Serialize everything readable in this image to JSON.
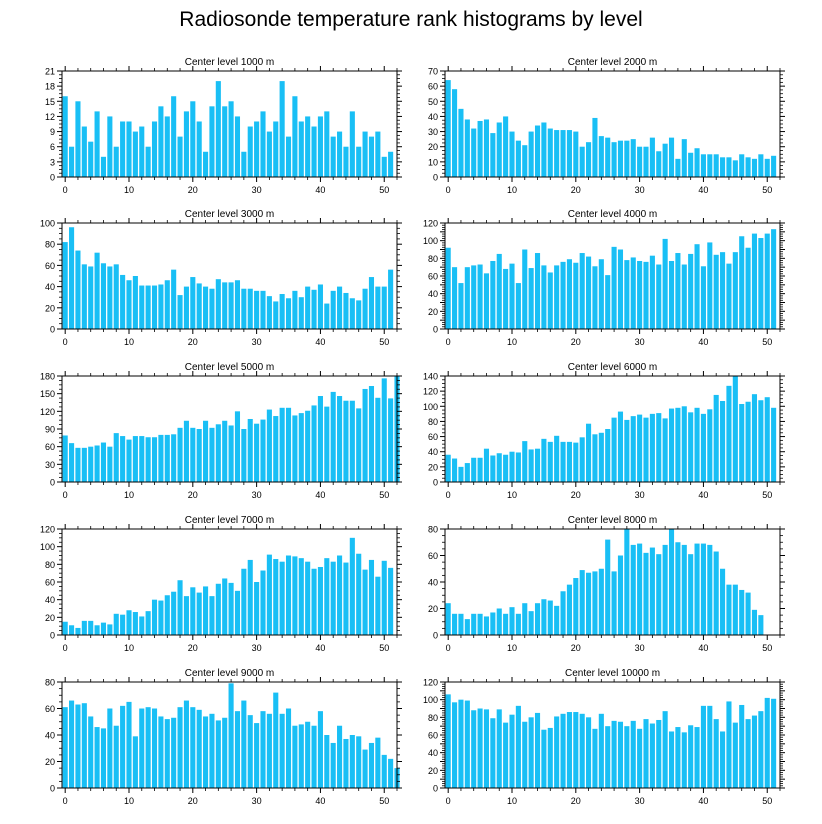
{
  "title": "Radiosonde temperature rank histograms by level",
  "colors": {
    "bar": "#19bff5",
    "axis": "#000000",
    "background": "#ffffff"
  },
  "chart_data": [
    {
      "type": "bar",
      "title": "Center level 1000 m",
      "xlim": [
        -0.5,
        52
      ],
      "ylim": [
        0,
        21
      ],
      "xticks": [
        0,
        10,
        20,
        30,
        40,
        50
      ],
      "yticks": [
        0,
        3,
        6,
        9,
        12,
        15,
        18,
        21
      ],
      "values": [
        16,
        6,
        15,
        10,
        7,
        13,
        4,
        12,
        6,
        11,
        11,
        9,
        10,
        6,
        11,
        14,
        12,
        16,
        8,
        13,
        15,
        11,
        5,
        14,
        19,
        14,
        15,
        12,
        5,
        10,
        11,
        13,
        9,
        11,
        19,
        8,
        16,
        11,
        12,
        10,
        12,
        13,
        8,
        9,
        6,
        13,
        6,
        9,
        8,
        9,
        4,
        5
      ]
    },
    {
      "type": "bar",
      "title": "Center level 2000 m",
      "xlim": [
        -0.5,
        52
      ],
      "ylim": [
        0,
        70
      ],
      "xticks": [
        0,
        10,
        20,
        30,
        40,
        50
      ],
      "yticks": [
        0,
        10,
        20,
        30,
        40,
        50,
        60,
        70
      ],
      "values": [
        64,
        58,
        45,
        38,
        32,
        37,
        38,
        29,
        36,
        40,
        30,
        24,
        21,
        30,
        34,
        36,
        32,
        31,
        31,
        31,
        30,
        20,
        23,
        39,
        27,
        26,
        23,
        24,
        24,
        25,
        20,
        20,
        26,
        17,
        22,
        26,
        12,
        25,
        16,
        19,
        15,
        15,
        15,
        13,
        13,
        11,
        15,
        13,
        12,
        15,
        12,
        14
      ]
    },
    {
      "type": "bar",
      "title": "Center level 3000 m",
      "xlim": [
        -0.5,
        52
      ],
      "ylim": [
        0,
        100
      ],
      "xticks": [
        0,
        10,
        20,
        30,
        40,
        50
      ],
      "yticks": [
        0,
        20,
        40,
        60,
        80,
        100
      ],
      "values": [
        82,
        96,
        74,
        61,
        59,
        72,
        62,
        59,
        61,
        51,
        46,
        50,
        41,
        41,
        41,
        42,
        46,
        56,
        32,
        40,
        49,
        43,
        40,
        38,
        47,
        44,
        44,
        46,
        38,
        38,
        36,
        36,
        31,
        26,
        33,
        29,
        36,
        30,
        40,
        37,
        42,
        24,
        36,
        40,
        34,
        29,
        27,
        38,
        49,
        40,
        40,
        56
      ]
    },
    {
      "type": "bar",
      "title": "Center level 4000 m",
      "xlim": [
        -0.5,
        52
      ],
      "ylim": [
        0,
        120
      ],
      "xticks": [
        0,
        10,
        20,
        30,
        40,
        50
      ],
      "yticks": [
        0,
        10,
        20,
        30,
        40,
        50,
        60,
        70,
        80,
        90,
        100,
        110,
        120
      ],
      "values": [
        92,
        70,
        52,
        70,
        72,
        73,
        63,
        77,
        85,
        68,
        74,
        52,
        90,
        69,
        86,
        72,
        64,
        72,
        76,
        79,
        75,
        86,
        82,
        71,
        79,
        61,
        93,
        90,
        78,
        81,
        77,
        76,
        83,
        73,
        102,
        77,
        86,
        73,
        85,
        96,
        71,
        98,
        84,
        87,
        74,
        87,
        105,
        92,
        108,
        103,
        108,
        113
      ]
    },
    {
      "type": "bar",
      "title": "Center level 5000 m",
      "xlim": [
        -0.5,
        52
      ],
      "ylim": [
        0,
        180
      ],
      "xticks": [
        0,
        10,
        20,
        30,
        40,
        50
      ],
      "yticks": [
        0,
        30,
        60,
        90,
        120,
        150,
        180
      ],
      "values": [
        79,
        66,
        58,
        58,
        60,
        62,
        67,
        60,
        83,
        78,
        72,
        78,
        78,
        76,
        76,
        80,
        80,
        81,
        92,
        104,
        92,
        90,
        104,
        92,
        98,
        104,
        96,
        120,
        90,
        107,
        99,
        106,
        123,
        112,
        126,
        126,
        113,
        117,
        121,
        130,
        146,
        128,
        153,
        146,
        138,
        138,
        125,
        158,
        163,
        143,
        176,
        142,
        180
      ]
    },
    {
      "type": "bar",
      "title": "Center level 6000 m",
      "xlim": [
        -0.5,
        52
      ],
      "ylim": [
        0,
        140
      ],
      "xticks": [
        0,
        10,
        20,
        30,
        40,
        50
      ],
      "yticks": [
        0,
        20,
        40,
        60,
        80,
        100,
        120,
        140
      ],
      "values": [
        36,
        31,
        20,
        25,
        32,
        32,
        44,
        35,
        38,
        36,
        40,
        39,
        54,
        43,
        44,
        57,
        53,
        61,
        53,
        53,
        52,
        59,
        77,
        63,
        65,
        70,
        85,
        93,
        82,
        87,
        89,
        85,
        90,
        91,
        84,
        97,
        98,
        100,
        92,
        98,
        90,
        96,
        115,
        107,
        127,
        140,
        103,
        106,
        116,
        108,
        112,
        98
      ]
    },
    {
      "type": "bar",
      "title": "Center level 7000 m",
      "xlim": [
        -0.5,
        52
      ],
      "ylim": [
        0,
        120
      ],
      "xticks": [
        0,
        10,
        20,
        30,
        40,
        50
      ],
      "yticks": [
        0,
        20,
        40,
        60,
        80,
        100,
        120
      ],
      "values": [
        15,
        11,
        8,
        16,
        16,
        11,
        14,
        12,
        24,
        23,
        28,
        26,
        21,
        27,
        40,
        39,
        45,
        49,
        62,
        44,
        54,
        48,
        55,
        44,
        58,
        64,
        59,
        50,
        75,
        85,
        60,
        73,
        91,
        86,
        83,
        90,
        89,
        87,
        83,
        75,
        77,
        87,
        83,
        90,
        82,
        110,
        92,
        74,
        85,
        66,
        84,
        76
      ]
    },
    {
      "type": "bar",
      "title": "Center level 8000 m",
      "xlim": [
        -0.5,
        52
      ],
      "ylim": [
        0,
        80
      ],
      "xticks": [
        0,
        10,
        20,
        30,
        40,
        50
      ],
      "yticks": [
        0,
        20,
        40,
        60,
        80
      ],
      "values": [
        24,
        16,
        16,
        12,
        16,
        16,
        14,
        17,
        20,
        16,
        21,
        16,
        24,
        18,
        24,
        27,
        26,
        22,
        33,
        38,
        43,
        49,
        47,
        48,
        50,
        72,
        48,
        60,
        80,
        68,
        69,
        62,
        66,
        61,
        68,
        80,
        70,
        68,
        61,
        69,
        69,
        68,
        63,
        50,
        38,
        38,
        34,
        32,
        19,
        15
      ]
    },
    {
      "type": "bar",
      "title": "Center level 9000 m",
      "xlim": [
        -0.5,
        52
      ],
      "ylim": [
        0,
        80
      ],
      "xticks": [
        0,
        10,
        20,
        30,
        40,
        50
      ],
      "yticks": [
        0,
        20,
        40,
        60,
        80
      ],
      "values": [
        61,
        66,
        63,
        64,
        54,
        46,
        45,
        60,
        47,
        62,
        65,
        39,
        60,
        61,
        60,
        54,
        52,
        53,
        61,
        66,
        61,
        59,
        54,
        56,
        51,
        53,
        79,
        58,
        66,
        55,
        49,
        58,
        56,
        72,
        56,
        60,
        47,
        48,
        50,
        47,
        58,
        40,
        34,
        47,
        37,
        40,
        39,
        29,
        34,
        38,
        25,
        22,
        15
      ]
    },
    {
      "type": "bar",
      "title": "Center level 10000 m",
      "xlim": [
        -0.5,
        52
      ],
      "ylim": [
        0,
        120
      ],
      "xticks": [
        0,
        10,
        20,
        30,
        40,
        50
      ],
      "yticks": [
        0,
        10,
        20,
        30,
        40,
        50,
        60,
        70,
        80,
        90,
        100,
        110,
        120
      ],
      "values": [
        106,
        97,
        100,
        99,
        88,
        90,
        89,
        79,
        89,
        74,
        83,
        93,
        75,
        80,
        85,
        66,
        68,
        81,
        84,
        86,
        86,
        84,
        80,
        67,
        84,
        70,
        76,
        75,
        70,
        76,
        67,
        78,
        73,
        77,
        87,
        64,
        69,
        63,
        71,
        69,
        93,
        93,
        78,
        64,
        98,
        74,
        94,
        78,
        82,
        87,
        102,
        101
      ]
    }
  ]
}
